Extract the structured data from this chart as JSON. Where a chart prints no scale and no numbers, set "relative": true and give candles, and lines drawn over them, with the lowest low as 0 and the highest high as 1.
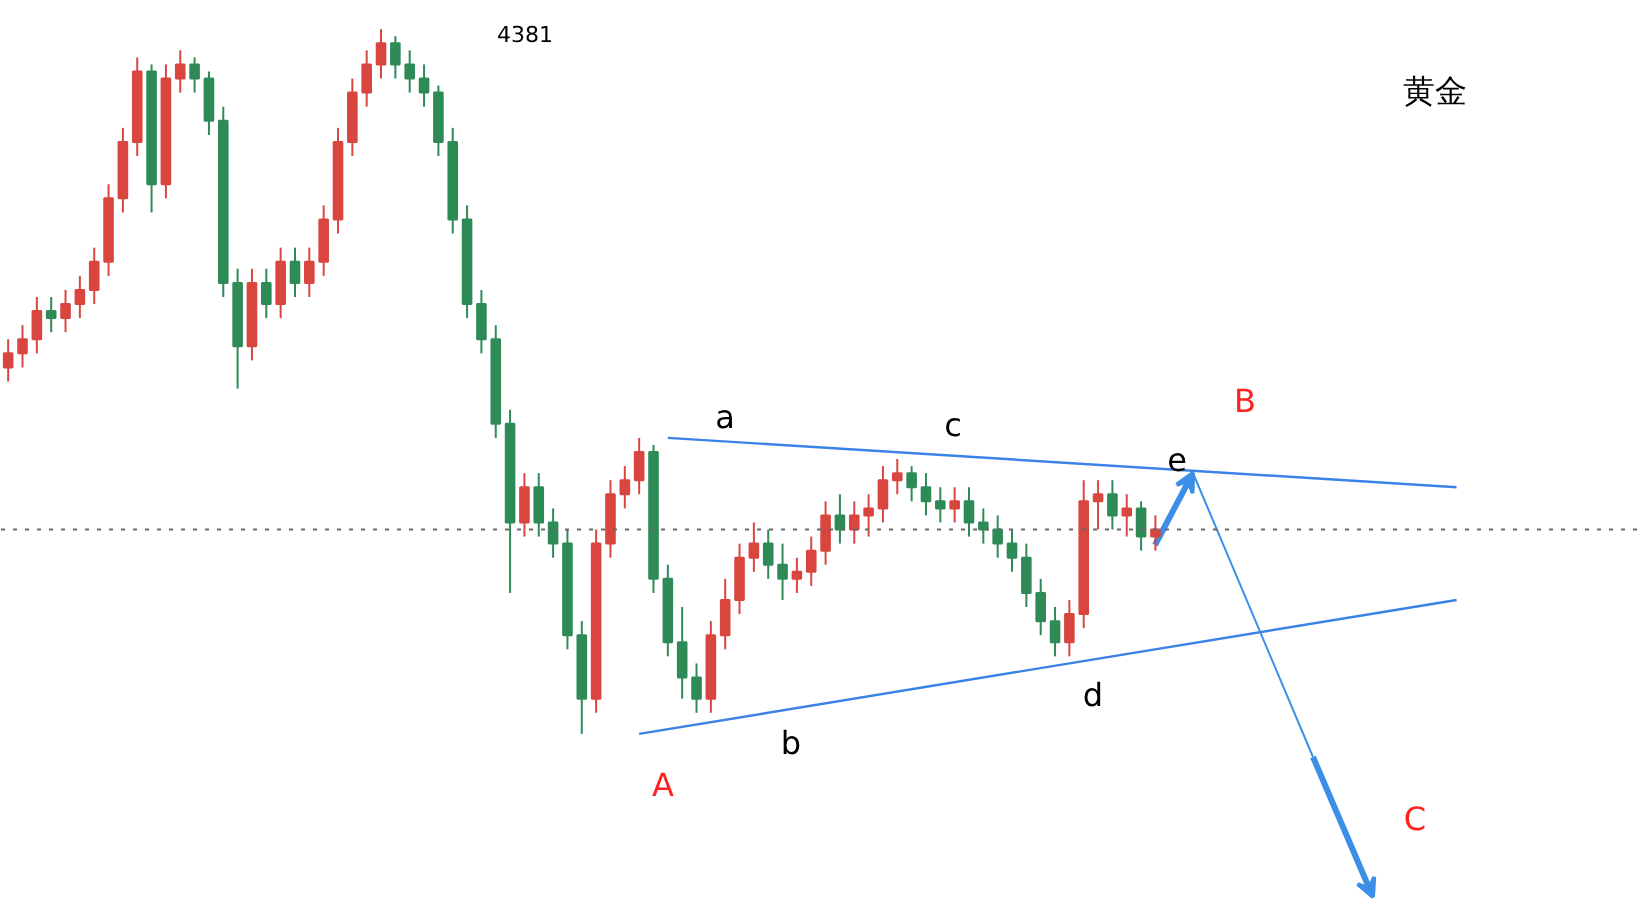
{
  "chart_data": {
    "type": "candlestick",
    "title": "黄金",
    "relative": true,
    "grid": false,
    "categories": [
      null,
      null,
      null,
      null,
      null,
      null,
      null,
      null,
      null,
      null,
      null,
      null,
      null,
      null,
      null,
      null,
      null,
      null,
      null,
      null,
      null,
      null,
      null,
      null,
      null,
      null,
      null,
      null,
      null,
      null,
      null,
      null,
      null,
      null,
      null,
      null,
      null,
      null,
      null,
      null,
      null,
      null,
      null,
      null,
      null,
      null,
      null,
      null,
      null,
      null,
      null,
      null,
      null,
      null,
      null,
      null,
      null,
      null,
      null,
      null,
      null,
      null,
      null,
      null,
      null,
      null,
      null,
      null,
      null,
      null,
      null,
      null,
      null,
      null,
      null,
      null,
      null,
      null,
      null,
      null,
      null,
      null,
      null,
      null,
      null,
      null,
      null,
      null,
      null,
      null,
      null,
      null,
      null,
      null,
      null,
      null,
      null,
      null,
      null,
      null,
      null,
      null
    ],
    "ohlc": [
      [
        0.52,
        0.56,
        0.5,
        0.54
      ],
      [
        0.54,
        0.58,
        0.52,
        0.56
      ],
      [
        0.56,
        0.62,
        0.54,
        0.6
      ],
      [
        0.6,
        0.62,
        0.57,
        0.59
      ],
      [
        0.59,
        0.63,
        0.57,
        0.61
      ],
      [
        0.61,
        0.65,
        0.59,
        0.63
      ],
      [
        0.63,
        0.69,
        0.61,
        0.67
      ],
      [
        0.67,
        0.78,
        0.65,
        0.76
      ],
      [
        0.76,
        0.86,
        0.74,
        0.84
      ],
      [
        0.84,
        0.96,
        0.82,
        0.94
      ],
      [
        0.94,
        0.95,
        0.74,
        0.78
      ],
      [
        0.78,
        0.95,
        0.76,
        0.93
      ],
      [
        0.93,
        0.97,
        0.91,
        0.95
      ],
      [
        0.95,
        0.96,
        0.91,
        0.93
      ],
      [
        0.93,
        0.94,
        0.85,
        0.87
      ],
      [
        0.87,
        0.89,
        0.62,
        0.64
      ],
      [
        0.64,
        0.66,
        0.49,
        0.55
      ],
      [
        0.55,
        0.66,
        0.53,
        0.64
      ],
      [
        0.64,
        0.66,
        0.59,
        0.61
      ],
      [
        0.61,
        0.69,
        0.59,
        0.67
      ],
      [
        0.67,
        0.69,
        0.62,
        0.64
      ],
      [
        0.64,
        0.69,
        0.62,
        0.67
      ],
      [
        0.67,
        0.75,
        0.65,
        0.73
      ],
      [
        0.73,
        0.86,
        0.71,
        0.84
      ],
      [
        0.84,
        0.93,
        0.82,
        0.91
      ],
      [
        0.91,
        0.97,
        0.89,
        0.95
      ],
      [
        0.95,
        1.0,
        0.93,
        0.98
      ],
      [
        0.98,
        0.99,
        0.93,
        0.95
      ],
      [
        0.95,
        0.97,
        0.91,
        0.93
      ],
      [
        0.93,
        0.95,
        0.89,
        0.91
      ],
      [
        0.91,
        0.92,
        0.82,
        0.84
      ],
      [
        0.84,
        0.86,
        0.71,
        0.73
      ],
      [
        0.73,
        0.75,
        0.59,
        0.61
      ],
      [
        0.61,
        0.63,
        0.54,
        0.56
      ],
      [
        0.56,
        0.58,
        0.42,
        0.44
      ],
      [
        0.44,
        0.46,
        0.2,
        0.3
      ],
      [
        0.3,
        0.37,
        0.28,
        0.35
      ],
      [
        0.35,
        0.37,
        0.28,
        0.3
      ],
      [
        0.3,
        0.32,
        0.25,
        0.27
      ],
      [
        0.27,
        0.29,
        0.12,
        0.14
      ],
      [
        0.14,
        0.16,
        0.0,
        0.05
      ],
      [
        0.05,
        0.29,
        0.03,
        0.27
      ],
      [
        0.27,
        0.36,
        0.25,
        0.34
      ],
      [
        0.34,
        0.38,
        0.32,
        0.36
      ],
      [
        0.36,
        0.42,
        0.34,
        0.4
      ],
      [
        0.4,
        0.41,
        0.2,
        0.22
      ],
      [
        0.22,
        0.24,
        0.11,
        0.13
      ],
      [
        0.13,
        0.18,
        0.05,
        0.08
      ],
      [
        0.08,
        0.1,
        0.03,
        0.05
      ],
      [
        0.05,
        0.16,
        0.03,
        0.14
      ],
      [
        0.14,
        0.22,
        0.12,
        0.19
      ],
      [
        0.19,
        0.27,
        0.17,
        0.25
      ],
      [
        0.25,
        0.3,
        0.23,
        0.27
      ],
      [
        0.27,
        0.29,
        0.22,
        0.24
      ],
      [
        0.24,
        0.27,
        0.19,
        0.22
      ],
      [
        0.22,
        0.25,
        0.2,
        0.23
      ],
      [
        0.23,
        0.28,
        0.21,
        0.26
      ],
      [
        0.26,
        0.33,
        0.24,
        0.31
      ],
      [
        0.31,
        0.34,
        0.27,
        0.29
      ],
      [
        0.29,
        0.33,
        0.27,
        0.31
      ],
      [
        0.31,
        0.34,
        0.28,
        0.32
      ],
      [
        0.32,
        0.38,
        0.3,
        0.36
      ],
      [
        0.36,
        0.39,
        0.34,
        0.37
      ],
      [
        0.37,
        0.38,
        0.33,
        0.35
      ],
      [
        0.35,
        0.37,
        0.31,
        0.33
      ],
      [
        0.33,
        0.35,
        0.3,
        0.32
      ],
      [
        0.32,
        0.35,
        0.3,
        0.33
      ],
      [
        0.33,
        0.35,
        0.28,
        0.3
      ],
      [
        0.3,
        0.32,
        0.27,
        0.29
      ],
      [
        0.29,
        0.31,
        0.25,
        0.27
      ],
      [
        0.27,
        0.29,
        0.23,
        0.25
      ],
      [
        0.25,
        0.27,
        0.18,
        0.2
      ],
      [
        0.2,
        0.22,
        0.14,
        0.16
      ],
      [
        0.16,
        0.18,
        0.11,
        0.13
      ],
      [
        0.13,
        0.19,
        0.11,
        0.17
      ],
      [
        0.17,
        0.36,
        0.15,
        0.33
      ],
      [
        0.33,
        0.36,
        0.29,
        0.34
      ],
      [
        0.34,
        0.36,
        0.29,
        0.31
      ],
      [
        0.31,
        0.34,
        0.28,
        0.32
      ],
      [
        0.32,
        0.33,
        0.26,
        0.28
      ],
      [
        0.28,
        0.31,
        0.26,
        0.29
      ],
      null,
      null,
      null,
      null,
      null,
      null,
      null,
      null,
      null,
      null,
      null,
      null,
      null,
      null,
      null,
      null,
      null,
      null,
      null,
      null,
      null
    ],
    "series": [
      {
        "type": "line",
        "color": "#3b82e6",
        "values": [
          null,
          null,
          null,
          null,
          null,
          null,
          null,
          null,
          null,
          null,
          null,
          null,
          null,
          null,
          null,
          null,
          null,
          null,
          null,
          null,
          null,
          null,
          null,
          null,
          null,
          null,
          null,
          null,
          null,
          null,
          null,
          null,
          null,
          null,
          null,
          null,
          null,
          null,
          null,
          null,
          null,
          null,
          null,
          null,
          null,
          null,
          0.42,
          null,
          null,
          null,
          null,
          null,
          null,
          null,
          null,
          null,
          null,
          null,
          null,
          null,
          null,
          null,
          null,
          null,
          null,
          null,
          null,
          null,
          null,
          null,
          null,
          null,
          null,
          null,
          null,
          null,
          null,
          null,
          null,
          null,
          null,
          null,
          null,
          null,
          null,
          null,
          null,
          null,
          null,
          null,
          null,
          null,
          null,
          null,
          null,
          null,
          null,
          null,
          null,
          null,
          null,
          0.35
        ]
      },
      {
        "type": "line",
        "color": "#3b82e6",
        "values": [
          null,
          null,
          null,
          null,
          null,
          null,
          null,
          null,
          null,
          null,
          null,
          null,
          null,
          null,
          null,
          null,
          null,
          null,
          null,
          null,
          null,
          null,
          null,
          null,
          null,
          null,
          null,
          null,
          null,
          null,
          null,
          null,
          null,
          null,
          null,
          null,
          null,
          null,
          null,
          null,
          null,
          null,
          null,
          null,
          0.0,
          null,
          null,
          null,
          null,
          null,
          null,
          null,
          null,
          null,
          null,
          null,
          null,
          null,
          null,
          null,
          null,
          null,
          null,
          null,
          null,
          null,
          null,
          null,
          null,
          null,
          null,
          null,
          null,
          null,
          null,
          null,
          null,
          null,
          null,
          null,
          null,
          null,
          null,
          null,
          null,
          null,
          null,
          null,
          null,
          null,
          null,
          null,
          null,
          null,
          null,
          null,
          null,
          null,
          null,
          null,
          null,
          0.19
        ]
      }
    ],
    "ref_lines": [
      {
        "axis": "y",
        "value": 0.29,
        "color": "#666666",
        "line_style": "dotted"
      }
    ],
    "annotations": [
      "4381",
      "a",
      "b",
      "c",
      "d",
      "e",
      "A",
      "B",
      "C"
    ]
  }
}
